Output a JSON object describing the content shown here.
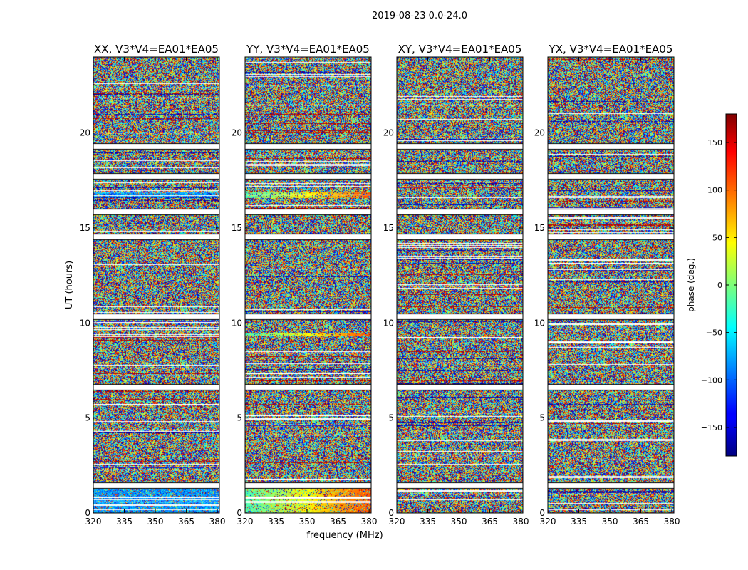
{
  "chart_data": {
    "type": "heatmap",
    "suptitle": "2019-08-23 0.0-24.0",
    "xlabel": "frequency (MHz)",
    "ylabel": "UT (hours)",
    "xlim": [
      320,
      381
    ],
    "ylim": [
      0,
      24
    ],
    "xticks": [
      "320",
      "335",
      "350",
      "365",
      "380"
    ],
    "xtick_values": [
      320,
      335,
      350,
      365,
      380
    ],
    "yticks": [
      "0",
      "5",
      "10",
      "15",
      "20"
    ],
    "ytick_values": [
      0,
      5,
      10,
      15,
      20
    ],
    "panels": [
      {
        "title": "XX, V3*V4=EA01*EA05"
      },
      {
        "title": "YY, V3*V4=EA01*EA05"
      },
      {
        "title": "XY, V3*V4=EA01*EA05"
      },
      {
        "title": "YX, V3*V4=EA01*EA05"
      }
    ],
    "colorbar": {
      "label": "phase (deg.)",
      "range": [
        -180,
        180
      ],
      "ticks": [
        "150",
        "100",
        "50",
        "0",
        "−50",
        "−100",
        "−150"
      ],
      "tick_values": [
        150,
        100,
        50,
        0,
        -50,
        -100,
        -150
      ],
      "colormap": "jet"
    },
    "flagged_gaps_hours": [
      1.45,
      6.65,
      10.35,
      14.55,
      15.85,
      17.75,
      19.3
    ],
    "colors": {
      "background": "#ffffff",
      "flagged": "#ffffff",
      "frame": "#000000"
    }
  }
}
